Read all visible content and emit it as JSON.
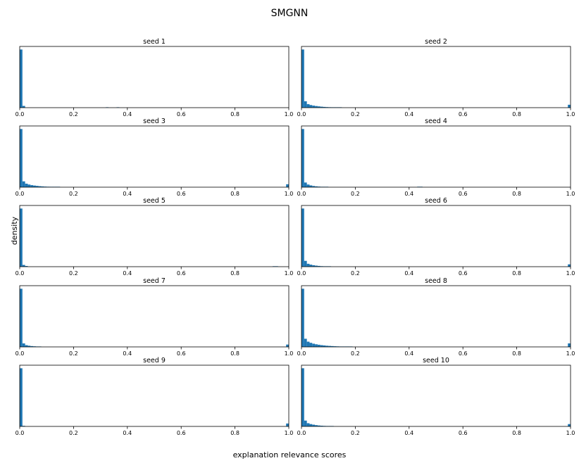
{
  "chart_data": {
    "type": "histogram",
    "title": "SMGNN",
    "xlabel": "explanation relevance scores",
    "ylabel": "density",
    "xlim": [
      0.0,
      1.0
    ],
    "xticks": [
      "0.0",
      "0.2",
      "0.4",
      "0.6",
      "0.8",
      "1.0"
    ],
    "bin_width": 0.01,
    "y_tick_labels_shown": false,
    "grid": false,
    "color": "#1f77b4",
    "layout": "5 rows x 2 columns",
    "panels": [
      {
        "title": "seed 1",
        "bins": [
          {
            "x": 0.0,
            "y": 1.0
          },
          {
            "x": 0.01,
            "y": 0.03
          },
          {
            "x": 0.32,
            "y": 0.004
          },
          {
            "x": 0.36,
            "y": 0.006
          }
        ]
      },
      {
        "title": "seed 2",
        "bins": [
          {
            "x": 0.0,
            "y": 1.0
          },
          {
            "x": 0.01,
            "y": 0.11
          },
          {
            "x": 0.02,
            "y": 0.06
          },
          {
            "x": 0.03,
            "y": 0.045
          },
          {
            "x": 0.04,
            "y": 0.035
          },
          {
            "x": 0.05,
            "y": 0.028
          },
          {
            "x": 0.06,
            "y": 0.022
          },
          {
            "x": 0.07,
            "y": 0.017
          },
          {
            "x": 0.08,
            "y": 0.013
          },
          {
            "x": 0.09,
            "y": 0.01
          },
          {
            "x": 0.1,
            "y": 0.008
          },
          {
            "x": 0.11,
            "y": 0.006
          },
          {
            "x": 0.12,
            "y": 0.005
          },
          {
            "x": 0.13,
            "y": 0.004
          },
          {
            "x": 0.14,
            "y": 0.003
          },
          {
            "x": 0.99,
            "y": 0.05
          }
        ]
      },
      {
        "title": "seed 3",
        "bins": [
          {
            "x": 0.0,
            "y": 1.0
          },
          {
            "x": 0.01,
            "y": 0.1
          },
          {
            "x": 0.02,
            "y": 0.06
          },
          {
            "x": 0.03,
            "y": 0.045
          },
          {
            "x": 0.04,
            "y": 0.035
          },
          {
            "x": 0.05,
            "y": 0.028
          },
          {
            "x": 0.06,
            "y": 0.022
          },
          {
            "x": 0.07,
            "y": 0.017
          },
          {
            "x": 0.08,
            "y": 0.013
          },
          {
            "x": 0.09,
            "y": 0.01
          },
          {
            "x": 0.1,
            "y": 0.008
          },
          {
            "x": 0.11,
            "y": 0.006
          },
          {
            "x": 0.12,
            "y": 0.005
          },
          {
            "x": 0.13,
            "y": 0.004
          },
          {
            "x": 0.14,
            "y": 0.003
          },
          {
            "x": 0.99,
            "y": 0.05
          }
        ]
      },
      {
        "title": "seed 4",
        "bins": [
          {
            "x": 0.0,
            "y": 1.0
          },
          {
            "x": 0.01,
            "y": 0.08
          },
          {
            "x": 0.02,
            "y": 0.045
          },
          {
            "x": 0.03,
            "y": 0.03
          },
          {
            "x": 0.04,
            "y": 0.02
          },
          {
            "x": 0.05,
            "y": 0.014
          },
          {
            "x": 0.06,
            "y": 0.01
          },
          {
            "x": 0.07,
            "y": 0.007
          },
          {
            "x": 0.08,
            "y": 0.005
          },
          {
            "x": 0.09,
            "y": 0.004
          },
          {
            "x": 0.43,
            "y": 0.008
          },
          {
            "x": 0.44,
            "y": 0.008
          }
        ]
      },
      {
        "title": "seed 5",
        "bins": [
          {
            "x": 0.0,
            "y": 1.0
          },
          {
            "x": 0.01,
            "y": 0.03
          },
          {
            "x": 0.02,
            "y": 0.012
          },
          {
            "x": 0.94,
            "y": 0.008
          },
          {
            "x": 0.95,
            "y": 0.008
          }
        ]
      },
      {
        "title": "seed 6",
        "bins": [
          {
            "x": 0.0,
            "y": 1.0
          },
          {
            "x": 0.01,
            "y": 0.1
          },
          {
            "x": 0.02,
            "y": 0.05
          },
          {
            "x": 0.03,
            "y": 0.035
          },
          {
            "x": 0.04,
            "y": 0.025
          },
          {
            "x": 0.05,
            "y": 0.018
          },
          {
            "x": 0.06,
            "y": 0.013
          },
          {
            "x": 0.07,
            "y": 0.009
          },
          {
            "x": 0.08,
            "y": 0.007
          },
          {
            "x": 0.09,
            "y": 0.005
          },
          {
            "x": 0.1,
            "y": 0.004
          },
          {
            "x": 0.99,
            "y": 0.04
          }
        ]
      },
      {
        "title": "seed 7",
        "bins": [
          {
            "x": 0.0,
            "y": 1.0
          },
          {
            "x": 0.01,
            "y": 0.06
          },
          {
            "x": 0.02,
            "y": 0.03
          },
          {
            "x": 0.03,
            "y": 0.02
          },
          {
            "x": 0.04,
            "y": 0.014
          },
          {
            "x": 0.05,
            "y": 0.01
          },
          {
            "x": 0.06,
            "y": 0.007
          },
          {
            "x": 0.07,
            "y": 0.005
          },
          {
            "x": 0.99,
            "y": 0.04
          }
        ]
      },
      {
        "title": "seed 8",
        "bins": [
          {
            "x": 0.0,
            "y": 1.0
          },
          {
            "x": 0.01,
            "y": 0.14
          },
          {
            "x": 0.02,
            "y": 0.09
          },
          {
            "x": 0.03,
            "y": 0.07
          },
          {
            "x": 0.04,
            "y": 0.055
          },
          {
            "x": 0.05,
            "y": 0.045
          },
          {
            "x": 0.06,
            "y": 0.037
          },
          {
            "x": 0.07,
            "y": 0.03
          },
          {
            "x": 0.08,
            "y": 0.025
          },
          {
            "x": 0.09,
            "y": 0.02
          },
          {
            "x": 0.1,
            "y": 0.017
          },
          {
            "x": 0.11,
            "y": 0.014
          },
          {
            "x": 0.12,
            "y": 0.011
          },
          {
            "x": 0.13,
            "y": 0.009
          },
          {
            "x": 0.14,
            "y": 0.007
          },
          {
            "x": 0.15,
            "y": 0.006
          },
          {
            "x": 0.16,
            "y": 0.005
          },
          {
            "x": 0.17,
            "y": 0.004
          },
          {
            "x": 0.18,
            "y": 0.003
          },
          {
            "x": 0.99,
            "y": 0.06
          }
        ]
      },
      {
        "title": "seed 9",
        "bins": [
          {
            "x": 0.0,
            "y": 1.0
          },
          {
            "x": 0.01,
            "y": 0.01
          },
          {
            "x": 0.99,
            "y": 0.05
          }
        ]
      },
      {
        "title": "seed 10",
        "bins": [
          {
            "x": 0.0,
            "y": 1.0
          },
          {
            "x": 0.01,
            "y": 0.1
          },
          {
            "x": 0.02,
            "y": 0.055
          },
          {
            "x": 0.03,
            "y": 0.04
          },
          {
            "x": 0.04,
            "y": 0.03
          },
          {
            "x": 0.05,
            "y": 0.022
          },
          {
            "x": 0.06,
            "y": 0.016
          },
          {
            "x": 0.07,
            "y": 0.012
          },
          {
            "x": 0.08,
            "y": 0.009
          },
          {
            "x": 0.09,
            "y": 0.007
          },
          {
            "x": 0.1,
            "y": 0.005
          },
          {
            "x": 0.11,
            "y": 0.004
          },
          {
            "x": 0.99,
            "y": 0.04
          }
        ]
      }
    ]
  }
}
